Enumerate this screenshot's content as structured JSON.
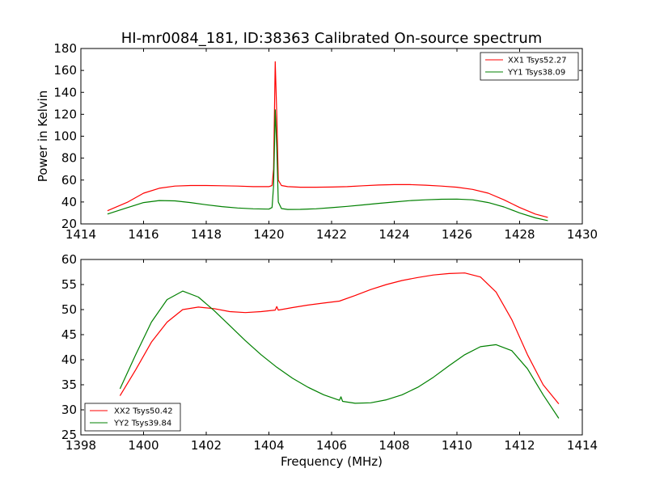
{
  "chart_data": [
    {
      "type": "line",
      "title": "HI-mr0084_181, ID:38363 Calibrated On-source spectrum",
      "xlabel": "",
      "ylabel": "Power in Kelvin",
      "xlim": [
        1414,
        1430
      ],
      "ylim": [
        20,
        180
      ],
      "xticks": [
        "1414",
        "1416",
        "1418",
        "1420",
        "1422",
        "1424",
        "1426",
        "1428",
        "1430"
      ],
      "yticks": [
        "20",
        "40",
        "60",
        "80",
        "100",
        "120",
        "140",
        "160",
        "180"
      ],
      "legend_position": "top-right",
      "grid": false,
      "series": [
        {
          "name": "XX1 Tsys52.27",
          "color": "#ff0000",
          "x": [
            1414.85,
            1415.5,
            1416.0,
            1416.5,
            1417.0,
            1417.5,
            1418.0,
            1418.5,
            1419.0,
            1419.5,
            1420.0,
            1420.1,
            1420.15,
            1420.2,
            1420.25,
            1420.3,
            1420.4,
            1420.6,
            1421.0,
            1421.5,
            1422.0,
            1422.5,
            1423.0,
            1423.5,
            1424.0,
            1424.5,
            1425.0,
            1425.5,
            1426.0,
            1426.5,
            1427.0,
            1427.5,
            1428.0,
            1428.5,
            1428.9
          ],
          "y": [
            32,
            40,
            48,
            52.5,
            54.5,
            55,
            55,
            54.8,
            54.5,
            54,
            54,
            55,
            70,
            168,
            120,
            60,
            55,
            54,
            53.5,
            53.5,
            53.6,
            54,
            54.8,
            55.5,
            55.8,
            55.8,
            55.3,
            54.5,
            53.5,
            51.5,
            48,
            42,
            35,
            29,
            26
          ]
        },
        {
          "name": "YY1 Tsys38.09",
          "color": "#008000",
          "x": [
            1414.85,
            1415.5,
            1416.0,
            1416.5,
            1417.0,
            1417.5,
            1418.0,
            1418.5,
            1419.0,
            1419.5,
            1420.0,
            1420.1,
            1420.15,
            1420.2,
            1420.25,
            1420.3,
            1420.4,
            1420.6,
            1421.0,
            1421.5,
            1422.0,
            1422.5,
            1423.0,
            1423.5,
            1424.0,
            1424.5,
            1425.0,
            1425.5,
            1426.0,
            1426.5,
            1427.0,
            1427.5,
            1428.0,
            1428.5,
            1428.9
          ],
          "y": [
            29,
            35,
            39.5,
            41.3,
            41,
            39.5,
            37.5,
            35.8,
            34.5,
            33.8,
            33.5,
            35,
            55,
            124,
            90,
            40,
            34,
            33.2,
            33.3,
            33.8,
            34.8,
            36,
            37.3,
            38.7,
            40,
            41.2,
            42,
            42.5,
            42.6,
            42,
            39.5,
            35.5,
            30,
            25.5,
            23
          ]
        }
      ]
    },
    {
      "type": "line",
      "title": "",
      "xlabel": "Frequency (MHz)",
      "ylabel": "",
      "xlim": [
        1398,
        1414
      ],
      "ylim": [
        25,
        60
      ],
      "xticks": [
        "1398",
        "1400",
        "1402",
        "1404",
        "1406",
        "1408",
        "1410",
        "1412",
        "1414"
      ],
      "yticks": [
        "25",
        "30",
        "35",
        "40",
        "45",
        "50",
        "55",
        "60"
      ],
      "legend_position": "bottom-left",
      "grid": false,
      "series": [
        {
          "name": "XX2 Tsys50.42",
          "color": "#ff0000",
          "x": [
            1399.25,
            1399.75,
            1400.25,
            1400.75,
            1401.25,
            1401.75,
            1402.25,
            1402.75,
            1403.25,
            1403.75,
            1404.2,
            1404.25,
            1404.3,
            1404.75,
            1405.25,
            1405.75,
            1406.25,
            1406.75,
            1407.25,
            1407.75,
            1408.25,
            1408.75,
            1409.25,
            1409.75,
            1410.25,
            1410.75,
            1411.25,
            1411.75,
            1412.25,
            1412.75,
            1413.25
          ],
          "y": [
            32.8,
            38,
            43.5,
            47.5,
            50,
            50.5,
            50.2,
            49.6,
            49.4,
            49.6,
            49.9,
            50.6,
            49.9,
            50.4,
            50.9,
            51.3,
            51.7,
            52.8,
            54,
            55,
            55.8,
            56.4,
            56.9,
            57.2,
            57.3,
            56.5,
            53.5,
            48,
            41,
            35,
            31.2
          ]
        },
        {
          "name": "YY2 Tsys39.84",
          "color": "#008000",
          "x": [
            1399.25,
            1399.75,
            1400.25,
            1400.75,
            1401.25,
            1401.75,
            1402.25,
            1402.75,
            1403.25,
            1403.75,
            1404.25,
            1404.75,
            1405.25,
            1405.75,
            1406.25,
            1406.3,
            1406.35,
            1406.75,
            1407.25,
            1407.75,
            1408.25,
            1408.75,
            1409.25,
            1409.75,
            1410.25,
            1410.75,
            1411.25,
            1411.75,
            1412.25,
            1412.75,
            1413.25
          ],
          "y": [
            34.2,
            41,
            47.5,
            52,
            53.7,
            52.5,
            49.8,
            46.8,
            43.8,
            41,
            38.5,
            36.3,
            34.5,
            33,
            31.9,
            32.6,
            31.7,
            31.3,
            31.4,
            32,
            33,
            34.5,
            36.5,
            38.8,
            41,
            42.6,
            43,
            41.8,
            38.2,
            33,
            28.3
          ]
        }
      ]
    }
  ]
}
